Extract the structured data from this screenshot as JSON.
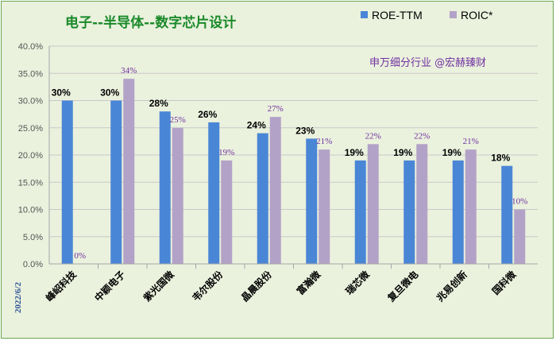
{
  "chart_data": {
    "type": "bar",
    "title": "电子--半导体--数字芯片设计",
    "subtitle": "申万细分行业 @宏赫臻财",
    "date_label": "2022/6/2",
    "categories": [
      "峰岹科技",
      "中颖电子",
      "紫光国微",
      "韦尔股份",
      "晶晨股份",
      "富瀚微",
      "瑞芯微",
      "复旦微电",
      "兆易创新",
      "国科微"
    ],
    "series": [
      {
        "name": "ROE-TTM",
        "color": "#4a86d6",
        "values": [
          30,
          30,
          28,
          26,
          24,
          23,
          19,
          19,
          19,
          18
        ],
        "labels": [
          "30%",
          "30%",
          "28%",
          "26%",
          "24%",
          "23%",
          "19%",
          "19%",
          "19%",
          "18%"
        ]
      },
      {
        "name": "ROIC*",
        "color": "#b3a2c7",
        "values": [
          0,
          34,
          25,
          19,
          27,
          21,
          22,
          22,
          21,
          10
        ],
        "labels": [
          "0%",
          "34%",
          "25%",
          "19%",
          "27%",
          "21%",
          "22%",
          "22%",
          "21%",
          "10%"
        ]
      }
    ],
    "ylim": [
      0,
      40
    ],
    "yticks": [
      "0.0%",
      "5.0%",
      "10.0%",
      "15.0%",
      "20.0%",
      "25.0%",
      "30.0%",
      "35.0%",
      "40.0%"
    ],
    "xlabel": "",
    "ylabel": "",
    "grid": true,
    "legend_position": "top-right"
  }
}
